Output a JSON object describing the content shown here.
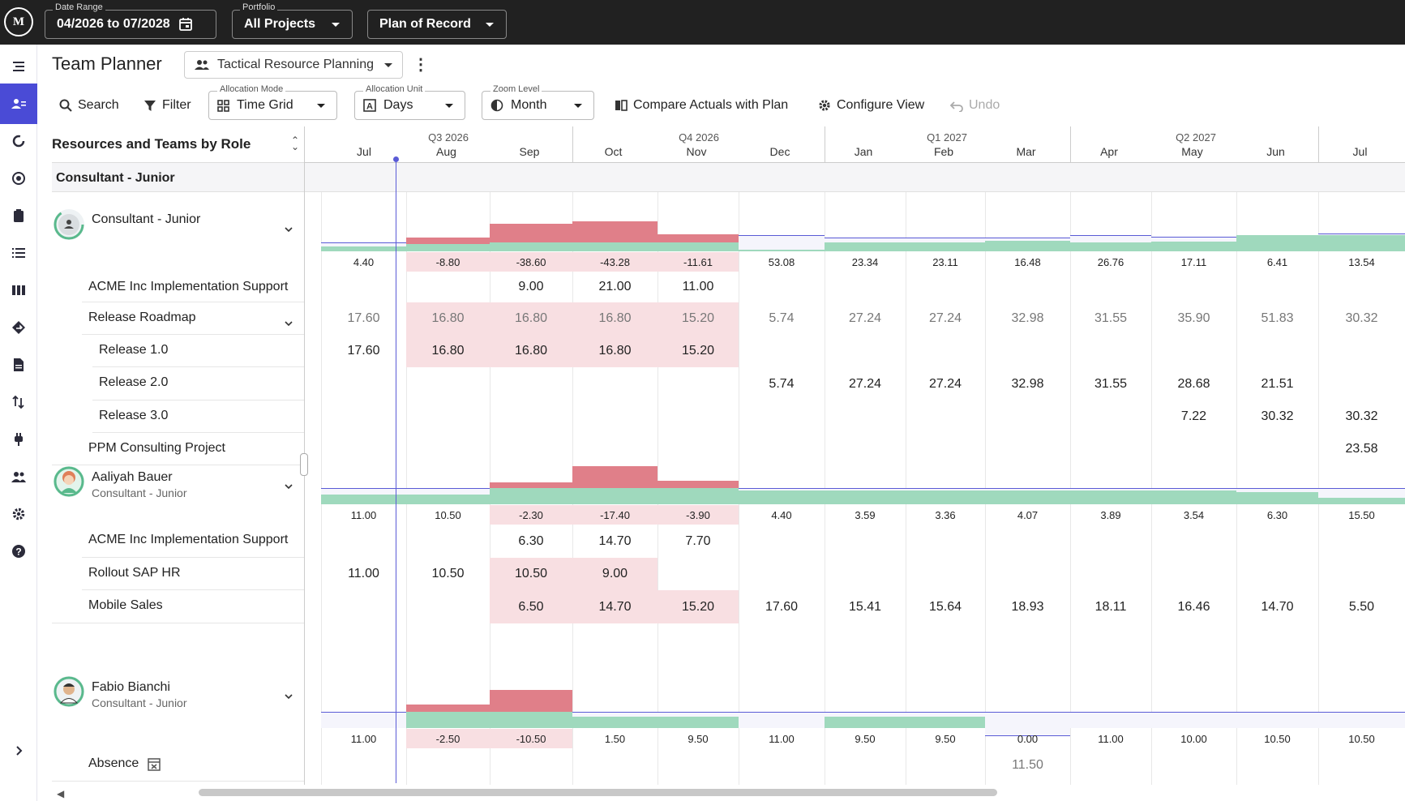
{
  "topbar": {
    "logo_text": "M",
    "date_range": {
      "label": "Date Range",
      "value": "04/2026 to 07/2028"
    },
    "portfolio": {
      "label": "Portfolio",
      "value": "All Projects"
    },
    "plan": {
      "value": "Plan of Record"
    }
  },
  "sidebar": {
    "items": [
      {
        "icon": "menu-icon",
        "active": false
      },
      {
        "icon": "team-planner-icon",
        "active": true
      },
      {
        "icon": "refresh-icon",
        "active": false
      },
      {
        "icon": "target-icon",
        "active": false
      },
      {
        "icon": "clipboard-icon",
        "active": false
      },
      {
        "icon": "list-icon",
        "active": false
      },
      {
        "icon": "columns-icon",
        "active": false
      },
      {
        "icon": "roadmap-icon",
        "active": false
      },
      {
        "icon": "document-icon",
        "active": false
      },
      {
        "icon": "sort-icon",
        "active": false
      },
      {
        "icon": "plug-icon",
        "active": false
      },
      {
        "icon": "people-icon",
        "active": false
      },
      {
        "icon": "settings-icon",
        "active": false
      },
      {
        "icon": "help-icon",
        "active": false
      },
      {
        "icon": "expand-icon",
        "active": false
      }
    ]
  },
  "page": {
    "title": "Team Planner",
    "view": "Tactical Resource Planning"
  },
  "toolbar": {
    "search": "Search",
    "filter": "Filter",
    "allocation_mode": {
      "label": "Allocation Mode",
      "value": "Time Grid"
    },
    "allocation_unit": {
      "label": "Allocation Unit",
      "value": "Days"
    },
    "zoom_level": {
      "label": "Zoom Level",
      "value": "Month"
    },
    "compare": "Compare Actuals with Plan",
    "configure": "Configure View",
    "undo": "Undo"
  },
  "grid": {
    "header_title": "Resources and Teams by Role",
    "quarters": [
      "Q3 2026",
      "Q4 2026",
      "Q1 2027",
      "Q2 2027"
    ],
    "months": [
      "Jul",
      "Aug",
      "Sep",
      "Oct",
      "Nov",
      "Dec",
      "Jan",
      "Feb",
      "Mar",
      "Apr",
      "May",
      "Jun",
      "Jul"
    ],
    "group_label": "Consultant - Junior",
    "resources": [
      {
        "name": "Consultant - Junior",
        "role": "",
        "avatar": "generic-person-icon",
        "summary": [
          "4.40",
          "-8.80",
          "-38.60",
          "-43.28",
          "-11.61",
          "53.08",
          "23.34",
          "23.11",
          "16.48",
          "26.76",
          "17.11",
          "6.41",
          "13.54"
        ],
        "capacity_levels": [
          0.55,
          0.45,
          0.55,
          0.55,
          0.55,
          1.0,
          0.85,
          0.85,
          0.85,
          1.0,
          0.9,
          0.9,
          1.1
        ],
        "load_levels": [
          0.3,
          0.35,
          0.55,
          0.7,
          0.5,
          0.1,
          0.55,
          0.55,
          0.65,
          0.55,
          0.6,
          1.0,
          1.0
        ],
        "rows": [
          {
            "label": "ACME Inc Implementation Support",
            "indent": 0,
            "values": [
              "",
              "",
              "9.00",
              "21.00",
              "11.00",
              "",
              "",
              "",
              "",
              "",
              "",
              "",
              ""
            ]
          },
          {
            "label": "Release Roadmap",
            "indent": 0,
            "expand": true,
            "gray": true,
            "values": [
              "17.60",
              "16.80",
              "16.80",
              "16.80",
              "15.20",
              "5.74",
              "27.24",
              "27.24",
              "32.98",
              "31.55",
              "35.90",
              "51.83",
              "30.32"
            ]
          },
          {
            "label": "Release 1.0",
            "indent": 1,
            "values": [
              "17.60",
              "16.80",
              "16.80",
              "16.80",
              "15.20",
              "",
              "",
              "",
              "",
              "",
              "",
              "",
              ""
            ]
          },
          {
            "label": "Release 2.0",
            "indent": 1,
            "values": [
              "",
              "",
              "",
              "",
              "",
              "5.74",
              "27.24",
              "27.24",
              "32.98",
              "31.55",
              "28.68",
              "21.51",
              ""
            ]
          },
          {
            "label": "Release 3.0",
            "indent": 1,
            "values": [
              "",
              "",
              "",
              "",
              "",
              "",
              "",
              "",
              "",
              "",
              "7.22",
              "30.32",
              "30.32"
            ]
          },
          {
            "label": "PPM Consulting Project",
            "indent": 0,
            "values": [
              "",
              "",
              "",
              "",
              "",
              "",
              "",
              "",
              "",
              "",
              "",
              "",
              "23.58"
            ]
          }
        ]
      },
      {
        "name": "Aaliyah Bauer",
        "role": "Consultant - Junior",
        "avatar": "female-avatar-icon",
        "summary": [
          "11.00",
          "10.50",
          "-2.30",
          "-17.40",
          "-3.90",
          "4.40",
          "3.59",
          "3.36",
          "4.07",
          "3.89",
          "3.54",
          "6.30",
          "15.50"
        ],
        "rows": [
          {
            "label": "ACME Inc Implementation Support",
            "indent": 0,
            "values": [
              "",
              "",
              "6.30",
              "14.70",
              "7.70",
              "",
              "",
              "",
              "",
              "",
              "",
              "",
              ""
            ]
          },
          {
            "label": "Rollout SAP HR",
            "indent": 0,
            "values": [
              "11.00",
              "10.50",
              "10.50",
              "9.00",
              "",
              "",
              "",
              "",
              "",
              "",
              "",
              "",
              ""
            ]
          },
          {
            "label": "Mobile Sales",
            "indent": 0,
            "values": [
              "",
              "",
              "6.50",
              "14.70",
              "15.20",
              "17.60",
              "15.41",
              "15.64",
              "18.93",
              "18.11",
              "16.46",
              "14.70",
              "5.50"
            ]
          }
        ]
      },
      {
        "name": "Fabio Bianchi",
        "role": "Consultant - Junior",
        "avatar": "male-avatar-icon",
        "summary": [
          "11.00",
          "-2.50",
          "-10.50",
          "1.50",
          "9.50",
          "11.00",
          "9.50",
          "9.50",
          "0.00",
          "11.00",
          "10.00",
          "10.50",
          "10.50"
        ],
        "rows": [
          {
            "label": "Absence",
            "indent": 0,
            "icon": "calendar-x-icon",
            "values": [
              "",
              "",
              "",
              "",
              "",
              "",
              "",
              "",
              "11.50",
              "",
              "",
              "",
              ""
            ]
          }
        ]
      }
    ]
  }
}
